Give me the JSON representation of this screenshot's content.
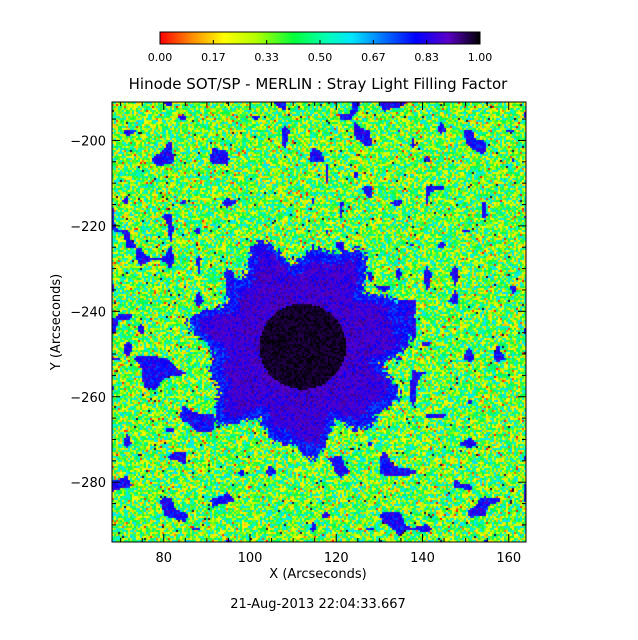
{
  "chart_data": {
    "type": "heatmap",
    "title": "Hinode SOT/SP - MERLIN : Stray Light Filling Factor",
    "xlabel": "X (Arcseconds)",
    "ylabel": "Y (Arcseconds)",
    "xlim": [
      68,
      164
    ],
    "ylim": [
      -294,
      -191
    ],
    "xticks": [
      80,
      100,
      120,
      140,
      160
    ],
    "yticks": [
      -200,
      -220,
      -240,
      -260,
      -280
    ],
    "colorbar": {
      "range": [
        0.0,
        1.0
      ],
      "tick_labels": [
        "0.00",
        "0.17",
        "0.33",
        "0.50",
        "0.67",
        "0.83",
        "1.00"
      ],
      "colormap": [
        [
          0.0,
          "#ff0000"
        ],
        [
          0.1,
          "#ff8c00"
        ],
        [
          0.2,
          "#ffff00"
        ],
        [
          0.3,
          "#b4ff00"
        ],
        [
          0.42,
          "#00ff3c"
        ],
        [
          0.52,
          "#00ffb4"
        ],
        [
          0.6,
          "#00e6ff"
        ],
        [
          0.7,
          "#0070ff"
        ],
        [
          0.8,
          "#0000ff"
        ],
        [
          0.9,
          "#5a00c8"
        ],
        [
          1.0,
          "#000000"
        ]
      ]
    },
    "features": {
      "sunspot_center": [
        112,
        -248
      ],
      "umbra_radius_arcsec": 10,
      "penumbra_radius_arcsec": 20
    },
    "timestamp": "21-Aug-2013 22:04:33.667"
  }
}
